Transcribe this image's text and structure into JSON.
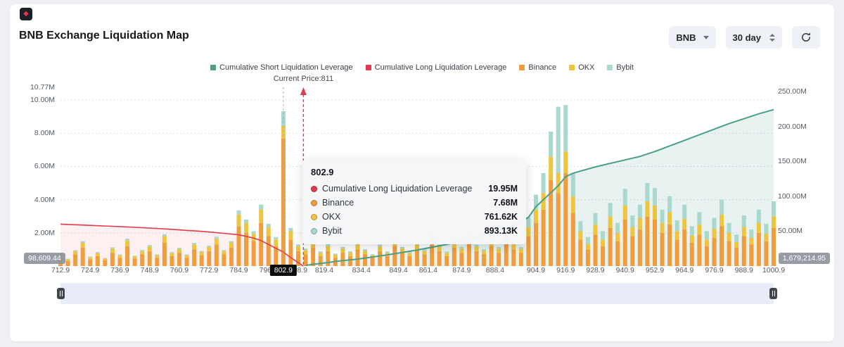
{
  "page": {
    "title": "BNB Exchange Liquidation Map"
  },
  "logo": {
    "glyph": "◆"
  },
  "controls": {
    "symbol_select": {
      "value": "BNB"
    },
    "range_select": {
      "value": "30 day"
    },
    "refresh_icon": "refresh-circular-arrow"
  },
  "legend": {
    "items": [
      {
        "label": "Cumulative Short Liquidation Leverage",
        "color": "#4d9e88"
      },
      {
        "label": "Cumulative Long Liquidation Leverage",
        "color": "#e23b4e"
      },
      {
        "label": "Binance",
        "color": "#ef9d3d"
      },
      {
        "label": "OKX",
        "color": "#efc53f"
      },
      {
        "label": "Bybit",
        "color": "#a8d8ce"
      }
    ]
  },
  "current_price_label": "Current Price:811",
  "tooltip": {
    "title": "802.9",
    "rows": [
      {
        "label": "Cumulative Long Liquidation Leverage",
        "value": "19.95M",
        "color": "#e23b4e"
      },
      {
        "label": "Binance",
        "value": "7.68M",
        "color": "#ef9d3d"
      },
      {
        "label": "OKX",
        "value": "761.62K",
        "color": "#efc53f"
      },
      {
        "label": "Bybit",
        "value": "893.13K",
        "color": "#a8d8ce"
      }
    ]
  },
  "edge_badges": {
    "left": "98,609.44",
    "right": "1,679,214.95"
  },
  "chart_data": {
    "type": "bar",
    "title": "BNB Exchange Liquidation Map",
    "current_price": 811,
    "hover_price": 802.9,
    "x_range": [
      712.9,
      1000.9
    ],
    "grid": true,
    "legend_position": "top",
    "x_axis": {
      "ticks": [
        "712.9",
        "724.9",
        "736.9",
        "748.9",
        "760.9",
        "772.9",
        "784.9",
        "796.9",
        "808.9",
        "819.4",
        "834.4",
        "849.4",
        "861.4",
        "874.9",
        "888.4",
        "904.9",
        "916.9",
        "928.9",
        "940.9",
        "952.9",
        "964.9",
        "976.9",
        "988.9",
        "1000.9"
      ],
      "pointer_label": "802.9"
    },
    "left_axis": {
      "unit": "M",
      "max": 10.77,
      "ticks": [
        {
          "label": "10.77M",
          "value": 10.77
        },
        {
          "label": "10.00M",
          "value": 10
        },
        {
          "label": "8.00M",
          "value": 8
        },
        {
          "label": "6.00M",
          "value": 6
        },
        {
          "label": "4.00M",
          "value": 4
        },
        {
          "label": "2.00M",
          "value": 2
        }
      ]
    },
    "right_axis": {
      "unit": "M",
      "max": 256,
      "ticks": [
        {
          "label": "250.00M",
          "value": 250
        },
        {
          "label": "200.00M",
          "value": 200
        },
        {
          "label": "150.00M",
          "value": 150
        },
        {
          "label": "100.00M",
          "value": 100
        },
        {
          "label": "50.00M",
          "value": 50
        }
      ]
    },
    "bars": {
      "axis": "left",
      "unit_millions": true,
      "start": 712.9,
      "step": 3,
      "series": [
        {
          "name": "Binance",
          "color": "#ef9d3d",
          "values": [
            0.5,
            0.3,
            0.7,
            1.1,
            0.4,
            0.6,
            0.35,
            0.8,
            0.5,
            1.2,
            0.45,
            0.7,
            0.9,
            0.5,
            1.4,
            0.6,
            0.8,
            0.5,
            1.0,
            0.65,
            0.9,
            1.3,
            0.7,
            1.1,
            2.4,
            2.0,
            1.5,
            2.6,
            1.8,
            1.2,
            7.68,
            1.6,
            0.9,
            0.7,
            1.1,
            0.6,
            0.9,
            0.5,
            0.8,
            0.6,
            1.0,
            0.7,
            0.5,
            0.9,
            0.6,
            1.2,
            0.8,
            0.6,
            1.0,
            0.7,
            1.3,
            0.9,
            0.6,
            1.1,
            0.8,
            1.4,
            0.9,
            0.7,
            1.2,
            0.8,
            1.5,
            1.0,
            0.8,
            1.8,
            2.6,
            3.4,
            5.2,
            4.4,
            5.6,
            3.2,
            1.6,
            1.0,
            1.9,
            1.2,
            2.3,
            1.5,
            2.8,
            1.8,
            2.2,
            3.0,
            2.8,
            2.0,
            2.5,
            1.6,
            2.2,
            1.4,
            1.9,
            1.2,
            1.7,
            2.4,
            1.5,
            1.1,
            1.8,
            1.3,
            2.0,
            1.5,
            2.3
          ]
        },
        {
          "name": "OKX",
          "color": "#efc53f",
          "values": [
            0.15,
            0.1,
            0.2,
            0.3,
            0.12,
            0.18,
            0.1,
            0.25,
            0.15,
            0.35,
            0.12,
            0.2,
            0.28,
            0.15,
            0.4,
            0.18,
            0.22,
            0.15,
            0.3,
            0.2,
            0.25,
            0.35,
            0.2,
            0.3,
            0.7,
            0.6,
            0.45,
            0.8,
            0.55,
            0.4,
            0.76,
            0.5,
            0.3,
            0.25,
            0.35,
            0.2,
            0.3,
            0.18,
            0.25,
            0.2,
            0.3,
            0.22,
            0.15,
            0.28,
            0.2,
            0.35,
            0.25,
            0.18,
            0.3,
            0.22,
            0.4,
            0.28,
            0.2,
            0.32,
            0.25,
            0.42,
            0.28,
            0.22,
            0.36,
            0.25,
            0.45,
            0.3,
            0.24,
            0.55,
            0.8,
            1.0,
            1.4,
            1.2,
            1.3,
            1.0,
            0.5,
            0.35,
            0.6,
            0.4,
            0.7,
            0.5,
            0.85,
            0.55,
            0.7,
            0.9,
            0.85,
            0.6,
            0.75,
            0.5,
            0.65,
            0.45,
            0.6,
            0.4,
            0.55,
            0.7,
            0.5,
            0.35,
            0.55,
            0.4,
            0.6,
            0.45,
            0.7
          ]
        },
        {
          "name": "Bybit",
          "color": "#a8d8ce",
          "values": [
            0.05,
            0.04,
            0.06,
            0.1,
            0.05,
            0.06,
            0.04,
            0.08,
            0.05,
            0.1,
            0.05,
            0.07,
            0.09,
            0.05,
            0.12,
            0.06,
            0.08,
            0.05,
            0.1,
            0.06,
            0.08,
            0.12,
            0.07,
            0.1,
            0.25,
            0.2,
            0.15,
            0.3,
            0.2,
            0.15,
            0.89,
            0.2,
            0.1,
            0.1,
            0.15,
            0.08,
            0.12,
            0.07,
            0.1,
            0.08,
            0.12,
            0.09,
            0.06,
            0.11,
            0.08,
            0.14,
            0.1,
            0.08,
            0.12,
            0.09,
            0.16,
            0.11,
            0.08,
            0.13,
            0.1,
            0.17,
            0.11,
            0.09,
            0.14,
            0.1,
            0.18,
            0.12,
            0.1,
            0.6,
            0.9,
            1.2,
            1.5,
            4.0,
            2.8,
            1.4,
            0.6,
            0.4,
            0.7,
            0.5,
            0.8,
            0.6,
            1.0,
            0.7,
            0.8,
            1.1,
            1.05,
            0.8,
            0.95,
            0.65,
            0.85,
            0.55,
            0.75,
            0.5,
            0.65,
            0.9,
            0.6,
            0.45,
            0.7,
            0.5,
            0.8,
            0.6,
            0.9
          ]
        }
      ]
    },
    "lines": [
      {
        "name": "Cumulative Long Liquidation Leverage",
        "axis": "right",
        "color": "#e23b4e",
        "fill": "rgba(226,59,78,0.08)",
        "points": [
          [
            712.9,
            60
          ],
          [
            716,
            59.5
          ],
          [
            720,
            59
          ],
          [
            724.9,
            58.3
          ],
          [
            728,
            57.8
          ],
          [
            732,
            57.2
          ],
          [
            736.9,
            56.5
          ],
          [
            740,
            56
          ],
          [
            744,
            55.3
          ],
          [
            748.9,
            54.4
          ],
          [
            752,
            53.8
          ],
          [
            756,
            53
          ],
          [
            760.9,
            51.8
          ],
          [
            764,
            51
          ],
          [
            768,
            50.2
          ],
          [
            772.9,
            48.8
          ],
          [
            776,
            47.8
          ],
          [
            780,
            46.5
          ],
          [
            784.9,
            44.8
          ],
          [
            788,
            42.5
          ],
          [
            790.9,
            40
          ],
          [
            793.9,
            36.5
          ],
          [
            796.9,
            31
          ],
          [
            799.9,
            25.5
          ],
          [
            802.9,
            19.95
          ],
          [
            805.9,
            12
          ],
          [
            808.9,
            5
          ],
          [
            810.9,
            0
          ]
        ]
      },
      {
        "name": "Cumulative Short Liquidation Leverage",
        "axis": "right",
        "color": "#4d9e88",
        "fill": "rgba(77,158,136,0.13)",
        "points": [
          [
            811.9,
            1
          ],
          [
            816,
            3
          ],
          [
            820.9,
            5
          ],
          [
            826,
            7.5
          ],
          [
            832.9,
            10
          ],
          [
            838.9,
            13
          ],
          [
            844.9,
            16
          ],
          [
            850.9,
            19.5
          ],
          [
            856.9,
            23
          ],
          [
            862.9,
            27
          ],
          [
            868.9,
            31
          ],
          [
            874.9,
            36
          ],
          [
            880.9,
            41
          ],
          [
            886.9,
            47
          ],
          [
            892.9,
            54
          ],
          [
            898.9,
            63
          ],
          [
            901.9,
            70
          ],
          [
            904.9,
            85
          ],
          [
            907.9,
            95
          ],
          [
            910.9,
            105
          ],
          [
            913.9,
            115
          ],
          [
            916.9,
            128
          ],
          [
            919.9,
            133
          ],
          [
            922.9,
            136
          ],
          [
            928.9,
            142
          ],
          [
            934.9,
            147
          ],
          [
            940.9,
            152
          ],
          [
            946.9,
            157
          ],
          [
            952.9,
            164
          ],
          [
            958.9,
            172
          ],
          [
            964.9,
            180
          ],
          [
            970.9,
            188
          ],
          [
            976.9,
            196
          ],
          [
            982.9,
            204
          ],
          [
            988.9,
            211
          ],
          [
            994.9,
            218
          ],
          [
            1000.9,
            224
          ]
        ]
      }
    ]
  }
}
